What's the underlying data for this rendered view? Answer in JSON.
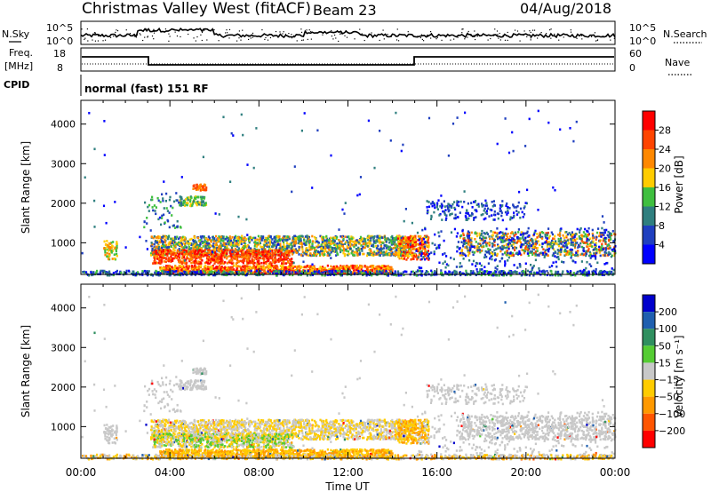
{
  "header": {
    "station": "Christmas Valley West (fitACF)",
    "beam": "Beam 23",
    "date": "04/Aug/2018"
  },
  "panels": {
    "nsky_label": "N.Sky",
    "nsearch_label": "N.Search",
    "freq_label_line1": "Freq.",
    "freq_label_line2": "[MHz]",
    "nave_label": "Nave",
    "cpid_label": "CPID",
    "cpid_value": "normal (fast) 151 RF",
    "noise_left_ticks": [
      "10^5",
      "10^0"
    ],
    "noise_right_ticks": [
      "10^5",
      "10^0"
    ],
    "freq_ticks": [
      "18",
      "8"
    ],
    "nave_ticks": [
      "60",
      "0"
    ]
  },
  "chart_data": [
    {
      "type": "heatmap",
      "name": "power",
      "ylabel": "Slant Range [km]",
      "yticks": [
        1000,
        2000,
        3000,
        4000
      ],
      "ylim": [
        200,
        4600
      ],
      "xlim": [
        0,
        24
      ],
      "colorbar": {
        "label": "Power [dB]",
        "ticks": [
          "4",
          "8",
          "12",
          "16",
          "20",
          "24",
          "28"
        ],
        "colors": [
          "#0000ff",
          "#1f3fbf",
          "#2f7f7f",
          "#3fbf3f",
          "#ffcc00",
          "#ff8800",
          "#ff4400",
          "#ff0000"
        ]
      }
    },
    {
      "type": "heatmap",
      "name": "velocity",
      "ylabel": "Slant Range [km]",
      "yticks": [
        1000,
        2000,
        3000,
        4000
      ],
      "ylim": [
        200,
        4600
      ],
      "xlim": [
        0,
        24
      ],
      "xlabel": "Time UT",
      "xticks": [
        "00:00",
        "04:00",
        "08:00",
        "12:00",
        "16:00",
        "20:00",
        "00:00"
      ],
      "colorbar": {
        "label": "Velocity [m s⁻¹]",
        "ticks": [
          "200",
          "100",
          "50",
          "15",
          "−15",
          "−50",
          "−100",
          "−200"
        ],
        "colors": [
          "#0000cc",
          "#1f5faf",
          "#2f8f5f",
          "#55cc33",
          "#c8c8c8",
          "#ffcc00",
          "#ff9900",
          "#ff5500",
          "#ff0000"
        ]
      }
    }
  ]
}
